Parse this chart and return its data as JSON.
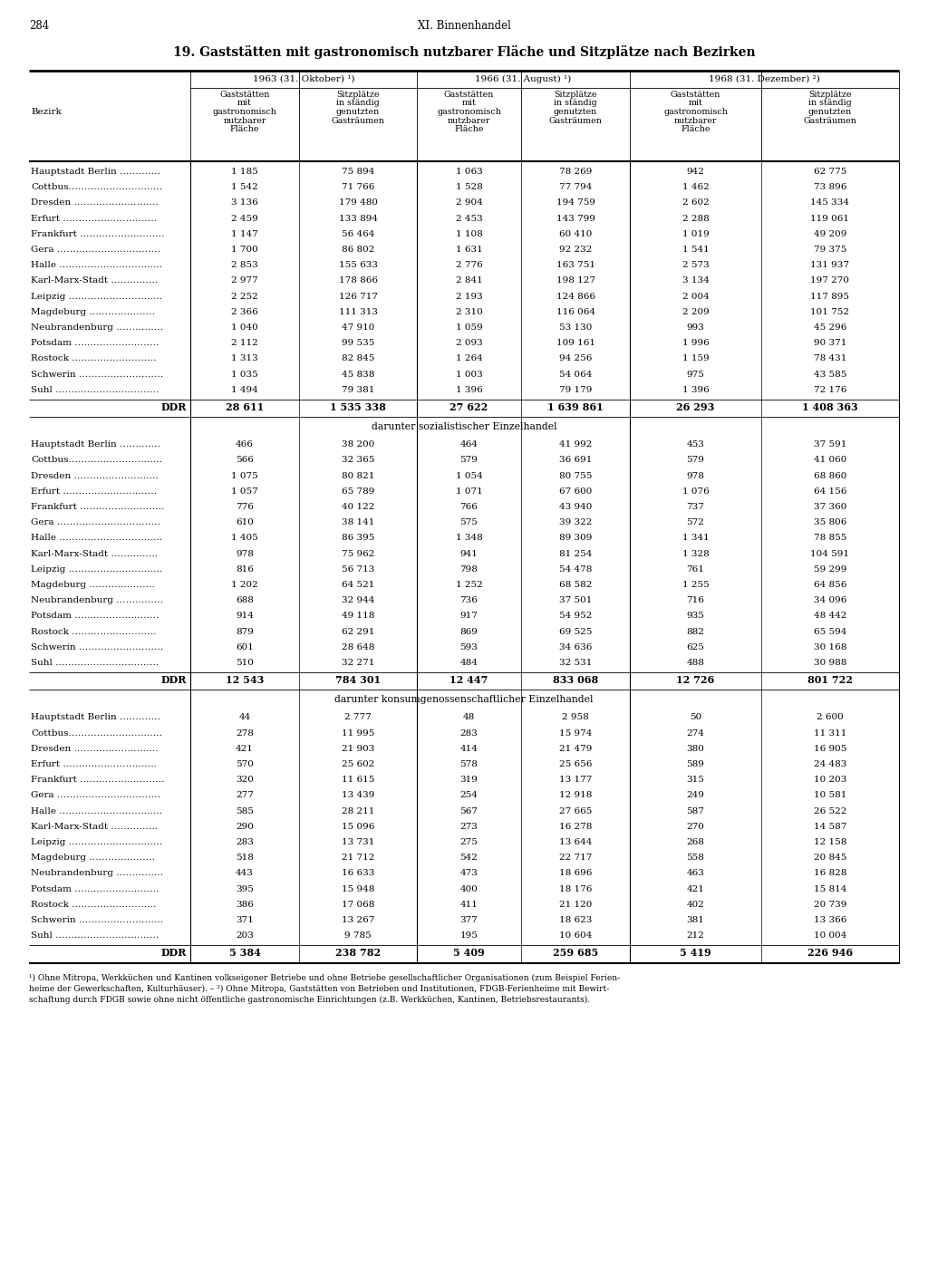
{
  "page_number": "284",
  "chapter": "XI. Binnenhandel",
  "title": "19. Gaststätten mit gastronomisch nutzbarer Fläche und Sitzplätze nach Bezirken",
  "col_headers_years": [
    "1963 (31. Oktober) ¹)",
    "1966 (31. August) ¹)",
    "1968 (31. Dezember) ²)"
  ],
  "col_headers_sub": [
    "Gaststätten\nmit\ngastronomisch\nnutzbarer\nFläche",
    "Sitzplätze\nin ständig\ngenutzten\nGasträumen",
    "Gaststätten\nmit\ngastronomisch\nnutzbarer\nFläche",
    "Sitzplätze\nin ständig\ngenutzten\nGasträumen",
    "Gaststätten\nmit\ngastronomisch\nnutzbarer\nFläche",
    "Sitzplätze\nin ständig\ngenutzten\nGasträumen"
  ],
  "bezirk_label": "Bezirk",
  "section1_label": "darunter sozialistischer Einzelhandel",
  "section2_label": "darunter konsumgenossenschaftlicher Einzelhandel",
  "districts": [
    "Hauptstadt Berlin ………….",
    "Cottbus…………………………",
    "Dresden ………………………",
    "Erfurt …………………………",
    "Frankfurt ………………………",
    "Gera ……………………………",
    "Halle ……………………………",
    "Karl-Marx-Stadt ……………",
    "Leipzig …………………………",
    "Magdeburg …………………",
    "Neubrandenburg ……………",
    "Potsdam ………………………",
    "Rostock ………………………",
    "Schwerin ………………………",
    "Suhl ……………………………"
  ],
  "data_main": [
    [
      "1 185",
      "75 894",
      "1 063",
      "78 269",
      "942",
      "62 775"
    ],
    [
      "1 542",
      "71 766",
      "1 528",
      "77 794",
      "1 462",
      "73 896"
    ],
    [
      "3 136",
      "179 480",
      "2 904",
      "194 759",
      "2 602",
      "145 334"
    ],
    [
      "2 459",
      "133 894",
      "2 453",
      "143 799",
      "2 288",
      "119 061"
    ],
    [
      "1 147",
      "56 464",
      "1 108",
      "60 410",
      "1 019",
      "49 209"
    ],
    [
      "1 700",
      "86 802",
      "1 631",
      "92 232",
      "1 541",
      "79 375"
    ],
    [
      "2 853",
      "155 633",
      "2 776",
      "163 751",
      "2 573",
      "131 937"
    ],
    [
      "2 977",
      "178 866",
      "2 841",
      "198 127",
      "3 134",
      "197 270"
    ],
    [
      "2 252",
      "126 717",
      "2 193",
      "124 866",
      "2 004",
      "117 895"
    ],
    [
      "2 366",
      "111 313",
      "2 310",
      "116 064",
      "2 209",
      "101 752"
    ],
    [
      "1 040",
      "47 910",
      "1 059",
      "53 130",
      "993",
      "45 296"
    ],
    [
      "2 112",
      "99 535",
      "2 093",
      "109 161",
      "1 996",
      "90 371"
    ],
    [
      "1 313",
      "82 845",
      "1 264",
      "94 256",
      "1 159",
      "78 431"
    ],
    [
      "1 035",
      "45 838",
      "1 003",
      "54 064",
      "975",
      "43 585"
    ],
    [
      "1 494",
      "79 381",
      "1 396",
      "79 179",
      "1 396",
      "72 176"
    ]
  ],
  "ddr_main": [
    "28 611",
    "1 535 338",
    "27 622",
    "1 639 861",
    "26 293",
    "1 408 363"
  ],
  "data_soz": [
    [
      "466",
      "38 200",
      "464",
      "41 992",
      "453",
      "37 591"
    ],
    [
      "566",
      "32 365",
      "579",
      "36 691",
      "579",
      "41 060"
    ],
    [
      "1 075",
      "80 821",
      "1 054",
      "80 755",
      "978",
      "68 860"
    ],
    [
      "1 057",
      "65 789",
      "1 071",
      "67 600",
      "1 076",
      "64 156"
    ],
    [
      "776",
      "40 122",
      "766",
      "43 940",
      "737",
      "37 360"
    ],
    [
      "610",
      "38 141",
      "575",
      "39 322",
      "572",
      "35 806"
    ],
    [
      "1 405",
      "86 395",
      "1 348",
      "89 309",
      "1 341",
      "78 855"
    ],
    [
      "978",
      "75 962",
      "941",
      "81 254",
      "1 328",
      "104 591"
    ],
    [
      "816",
      "56 713",
      "798",
      "54 478",
      "761",
      "59 299"
    ],
    [
      "1 202",
      "64 521",
      "1 252",
      "68 582",
      "1 255",
      "64 856"
    ],
    [
      "688",
      "32 944",
      "736",
      "37 501",
      "716",
      "34 096"
    ],
    [
      "914",
      "49 118",
      "917",
      "54 952",
      "935",
      "48 442"
    ],
    [
      "879",
      "62 291",
      "869",
      "69 525",
      "882",
      "65 594"
    ],
    [
      "601",
      "28 648",
      "593",
      "34 636",
      "625",
      "30 168"
    ],
    [
      "510",
      "32 271",
      "484",
      "32 531",
      "488",
      "30 988"
    ]
  ],
  "ddr_soz": [
    "12 543",
    "784 301",
    "12 447",
    "833 068",
    "12 726",
    "801 722"
  ],
  "data_kons": [
    [
      "44",
      "2 777",
      "48",
      "2 958",
      "50",
      "2 600"
    ],
    [
      "278",
      "11 995",
      "283",
      "15 974",
      "274",
      "11 311"
    ],
    [
      "421",
      "21 903",
      "414",
      "21 479",
      "380",
      "16 905"
    ],
    [
      "570",
      "25 602",
      "578",
      "25 656",
      "589",
      "24 483"
    ],
    [
      "320",
      "11 615",
      "319",
      "13 177",
      "315",
      "10 203"
    ],
    [
      "277",
      "13 439",
      "254",
      "12 918",
      "249",
      "10 581"
    ],
    [
      "585",
      "28 211",
      "567",
      "27 665",
      "587",
      "26 522"
    ],
    [
      "290",
      "15 096",
      "273",
      "16 278",
      "270",
      "14 587"
    ],
    [
      "283",
      "13 731",
      "275",
      "13 644",
      "268",
      "12 158"
    ],
    [
      "518",
      "21 712",
      "542",
      "22 717",
      "558",
      "20 845"
    ],
    [
      "443",
      "16 633",
      "473",
      "18 696",
      "463",
      "16 828"
    ],
    [
      "395",
      "15 948",
      "400",
      "18 176",
      "421",
      "15 814"
    ],
    [
      "386",
      "17 068",
      "411",
      "21 120",
      "402",
      "20 739"
    ],
    [
      "371",
      "13 267",
      "377",
      "18 623",
      "381",
      "13 366"
    ],
    [
      "203",
      "9 785",
      "195",
      "10 604",
      "212",
      "10 004"
    ]
  ],
  "ddr_kons": [
    "5 384",
    "238 782",
    "5 409",
    "259 685",
    "5 419",
    "226 946"
  ],
  "footnote1": "¹) Ohne Mitropa, Werkküchen und Kantinen volkseigener Betriebe und ohne Betriebe gesellschaftlicher Organisationen (zum Beispiel Ferien-",
  "footnote1b": "heime der Gewerkschaften, Kulturhäuser). – ²) Ohne Mitropa, Gaststätten von Betrieben und Institutionen, FDGB-Ferienheime mit Bewirt-",
  "footnote2": "schaftung durch FDGB sowie ohne nicht öffentliche gastronomische Einrichtungen (z.B. Werkküchen, Kantinen, Betriebsrestaurants)."
}
